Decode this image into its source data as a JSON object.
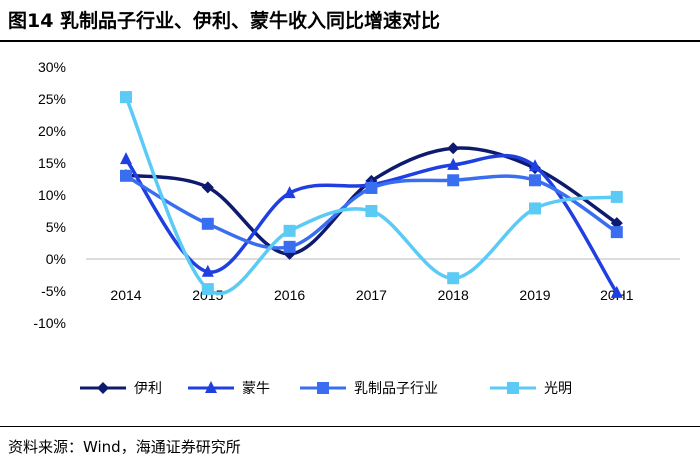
{
  "title": "图14 乳制品子行业、伊利、蒙牛收入同比增速对比",
  "source": "资料来源：Wind，海通证券研究所",
  "chart_data": {
    "type": "line",
    "categories": [
      "2014",
      "2015",
      "2016",
      "2017",
      "2018",
      "2019",
      "20H1"
    ],
    "yticks": [
      "30%",
      "25%",
      "20%",
      "15%",
      "10%",
      "5%",
      "0%",
      "-5%",
      "-10%"
    ],
    "ylim": [
      -10,
      30
    ],
    "legend_position": "bottom",
    "series": [
      {
        "name": "伊利",
        "marker": "diamond",
        "color": "#0d1a6e",
        "values": [
          13.1,
          11.2,
          0.8,
          12.2,
          17.3,
          14.2,
          5.6
        ]
      },
      {
        "name": "蒙牛",
        "marker": "triangle",
        "color": "#1f3fe0",
        "values": [
          15.6,
          -2.0,
          10.3,
          11.6,
          14.7,
          14.5,
          -5.3
        ]
      },
      {
        "name": "乳制品子行业",
        "marker": "square",
        "color": "#3a6ef0",
        "values": [
          13.0,
          5.5,
          1.9,
          11.1,
          12.3,
          12.3,
          4.2
        ]
      },
      {
        "name": "光明",
        "marker": "square",
        "color": "#5bcbf5",
        "values": [
          25.3,
          -4.7,
          4.4,
          7.5,
          -3.0,
          7.9,
          9.7
        ]
      }
    ]
  }
}
